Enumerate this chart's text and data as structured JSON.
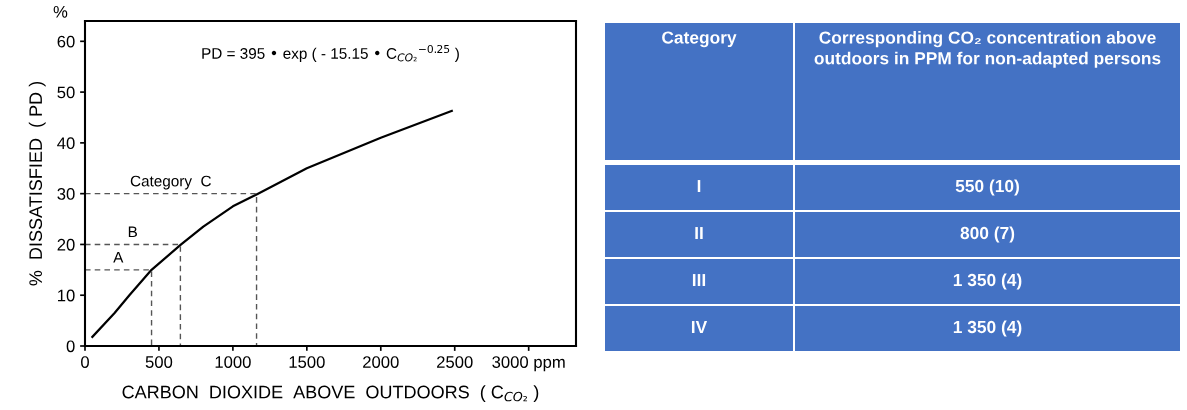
{
  "chart_data": [
    {
      "type": "line",
      "xlabel": "CARBON  DIOXIDE  ABOVE  OUTDOORS  ( C$_{CO₂}$ )",
      "ylabel": "%  DISSATISFIED  ( PD )",
      "xlim": [
        0,
        3320
      ],
      "ylim": [
        0,
        64
      ],
      "xticks": [
        0,
        500,
        1000,
        1500,
        2000,
        2500,
        {
          "value": 3000,
          "label": "3000 ppm"
        }
      ],
      "yticks": [
        0,
        10,
        20,
        30,
        40,
        50,
        60
      ],
      "series": [
        {
          "color": "#000000",
          "x": [
            50,
            200,
            300,
            450,
            650,
            800,
            1000,
            1170,
            1500,
            2000,
            2480
          ],
          "values": [
            1.8,
            6.5,
            10,
            15,
            20,
            23.5,
            27.5,
            30,
            35,
            41,
            46.3
          ]
        },
        {
          "color": "#555555",
          "line_style": "dashed",
          "x": [
            0,
            450,
            450
          ],
          "values": [
            15,
            15,
            0
          ]
        },
        {
          "color": "#555555",
          "line_style": "dashed",
          "x": [
            0,
            645,
            645
          ],
          "values": [
            20,
            20,
            0
          ]
        },
        {
          "color": "#555555",
          "line_style": "dashed",
          "x": [
            0,
            1160,
            1160
          ],
          "values": [
            30,
            30,
            0
          ]
        }
      ],
      "annotations": [
        "PD = 395 • exp ( - 15.15 • C$_{CO₂}$$^{−0.25}$ )",
        "Category  C",
        "B",
        "A",
        "%"
      ]
    },
    {
      "type": "other",
      "color": "#4472c4",
      "annotations": [
        "Category",
        "Corresponding CO₂ concentration above outdoors in PPM for non-adapted persons",
        "I",
        "550 (10)",
        "II",
        "800 (7)",
        "III",
        "1 350 (4)",
        "IV",
        "1 350 (4)"
      ]
    }
  ]
}
